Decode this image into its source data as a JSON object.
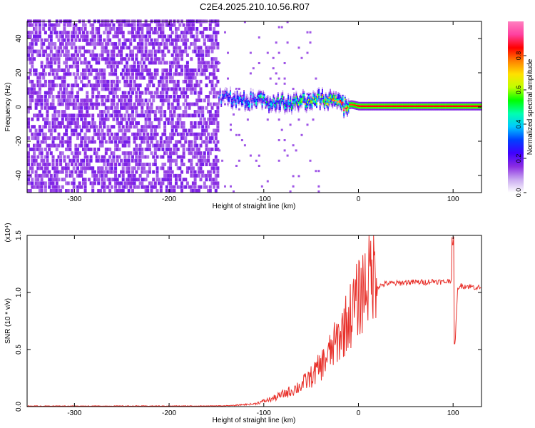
{
  "title": "C2E4.2025.210.10.56.R07",
  "chart_data": [
    {
      "type": "heatmap",
      "xlabel": "Height of straight line (km)",
      "ylabel": "Frequency (Hz)",
      "xlim": [
        -350,
        130
      ],
      "ylim": [
        -50,
        50
      ],
      "xticks": [
        -300,
        -200,
        -100,
        0,
        100
      ],
      "yticks": [
        -40,
        -20,
        0,
        20,
        40
      ],
      "xtick_labels": [
        "-300",
        "-200",
        "-100",
        "0",
        "100"
      ],
      "ytick_labels": [
        "-40",
        "-20",
        "0",
        "20",
        "40"
      ],
      "colorbar": {
        "label": "Normalized spectral amplitude",
        "range": [
          0,
          1
        ],
        "ticks": [
          0.0,
          0.2,
          0.4,
          0.6,
          0.8
        ],
        "tick_labels": [
          "0.0",
          "0.2",
          "0.4",
          "0.6",
          "0.8"
        ],
        "colors": [
          "#ffffff",
          "#c9a8f0",
          "#8a2be2",
          "#3f00ff",
          "#0040ff",
          "#00c8ff",
          "#00ffb0",
          "#00ff00",
          "#c0ff00",
          "#ffe000",
          "#ff8000",
          "#ff0000",
          "#ff40a0",
          "#ff80c0"
        ]
      },
      "noise_region": {
        "x": [
          -350,
          -148
        ],
        "amplitude": 0.15
      },
      "signal_trace": {
        "x": [
          -148,
          -130,
          -110,
          -90,
          -70,
          -55,
          -40,
          -25,
          -15,
          -8,
          0,
          20,
          50,
          80,
          100,
          130
        ],
        "y": [
          5,
          4,
          3,
          2,
          2,
          3,
          4,
          4,
          0,
          1,
          0,
          0,
          0,
          0,
          0,
          0
        ],
        "amplitude": [
          0.3,
          0.35,
          0.4,
          0.45,
          0.5,
          0.55,
          0.6,
          0.7,
          0.8,
          0.8,
          0.85,
          0.85,
          0.85,
          0.85,
          0.85,
          0.85
        ]
      }
    },
    {
      "type": "line",
      "xlabel": "Height of straight line (km)",
      "ylabel": "SNR (10 * v/v)",
      "scale_label": "(x10⁴)",
      "xlim": [
        -350,
        130
      ],
      "ylim": [
        0,
        1.5
      ],
      "xticks": [
        -300,
        -200,
        -100,
        0,
        100
      ],
      "yticks": [
        0.0,
        0.5,
        1.0,
        1.5
      ],
      "xtick_labels": [
        "-300",
        "-200",
        "-100",
        "0",
        "100"
      ],
      "ytick_labels": [
        "0.0",
        "0.5",
        "1.0",
        "1.5"
      ],
      "series": [
        {
          "color": "#e8302a",
          "x": [
            -350,
            -300,
            -250,
            -200,
            -150,
            -130,
            -110,
            -100,
            -90,
            -80,
            -70,
            -60,
            -50,
            -40,
            -30,
            -20,
            -10,
            0,
            10,
            20,
            30,
            40,
            50,
            60,
            70,
            80,
            90,
            95,
            100,
            102,
            105,
            110,
            120,
            130
          ],
          "y": [
            0.005,
            0.005,
            0.005,
            0.005,
            0.006,
            0.01,
            0.02,
            0.04,
            0.06,
            0.09,
            0.12,
            0.16,
            0.22,
            0.3,
            0.4,
            0.52,
            0.66,
            0.8,
            0.95,
            1.05,
            1.08,
            1.08,
            1.09,
            1.09,
            1.09,
            1.1,
            1.09,
            1.1,
            1.12,
            0.55,
            1.05,
            1.06,
            1.05,
            1.04
          ]
        }
      ]
    }
  ]
}
